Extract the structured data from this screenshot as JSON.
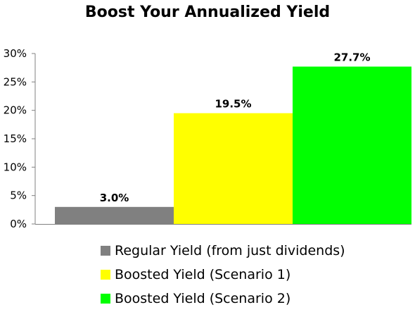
{
  "chart_data": {
    "type": "bar",
    "title": "Boost Your Annualized Yield",
    "xlabel": "",
    "ylabel": "",
    "ylim": [
      0,
      30
    ],
    "yticks": [
      0,
      5,
      10,
      15,
      20,
      25,
      30
    ],
    "ytick_labels": [
      "0%",
      "5%",
      "10%",
      "15%",
      "20%",
      "25%",
      "30%"
    ],
    "grid": false,
    "legend_position": "bottom",
    "series": [
      {
        "name": "Regular Yield (from just dividends)",
        "value": 3.0,
        "label": "3.0%",
        "color": "#808080"
      },
      {
        "name": "Boosted Yield (Scenario 1)",
        "value": 19.5,
        "label": "19.5%",
        "color": "#ffff00"
      },
      {
        "name": "Boosted Yield (Scenario 2)",
        "value": 27.7,
        "label": "27.7%",
        "color": "#00ff00"
      }
    ]
  }
}
